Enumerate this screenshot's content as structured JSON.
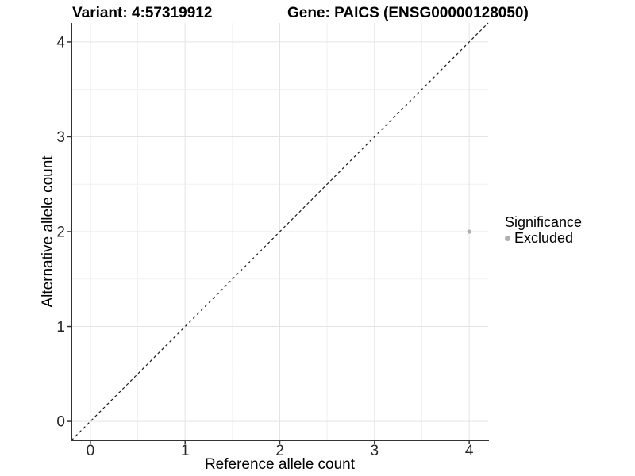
{
  "chart_data": {
    "type": "scatter",
    "title_left": "Variant: 4:57319912",
    "title_right": "Gene: PAICS (ENSG00000128050)",
    "xlabel": "Reference allele count",
    "ylabel": "Alternative allele count",
    "xlim": [
      -0.2,
      4.2
    ],
    "ylim": [
      -0.2,
      4.2
    ],
    "xticks": [
      0,
      1,
      2,
      3,
      4
    ],
    "yticks": [
      0,
      1,
      2,
      3,
      4
    ],
    "xticks_minor": [
      0.5,
      1.5,
      2.5,
      3.5
    ],
    "yticks_minor": [
      0.5,
      1.5,
      2.5,
      3.5
    ],
    "grid": "major+minor",
    "identity_line": {
      "style": "dashed",
      "from": [
        -0.2,
        -0.2
      ],
      "to": [
        4.2,
        4.2
      ]
    },
    "series": [
      {
        "name": "Excluded",
        "color": "#b0b0b0",
        "points": [
          {
            "x": 4,
            "y": 2
          }
        ]
      }
    ],
    "legend": {
      "title": "Significance",
      "position": "right",
      "items": [
        {
          "label": "Excluded",
          "color": "#b0b0b0"
        }
      ]
    },
    "colors": {
      "background": "#ffffff",
      "grid_major": "#e4e4e4",
      "grid_minor": "#f1f1f1",
      "axis_line": "#333333",
      "tick_mark": "#333333",
      "tick_label": "#262626",
      "title_text": "#000000",
      "identity_line": "#1a1a1a",
      "point": "#b0b0b0"
    }
  }
}
